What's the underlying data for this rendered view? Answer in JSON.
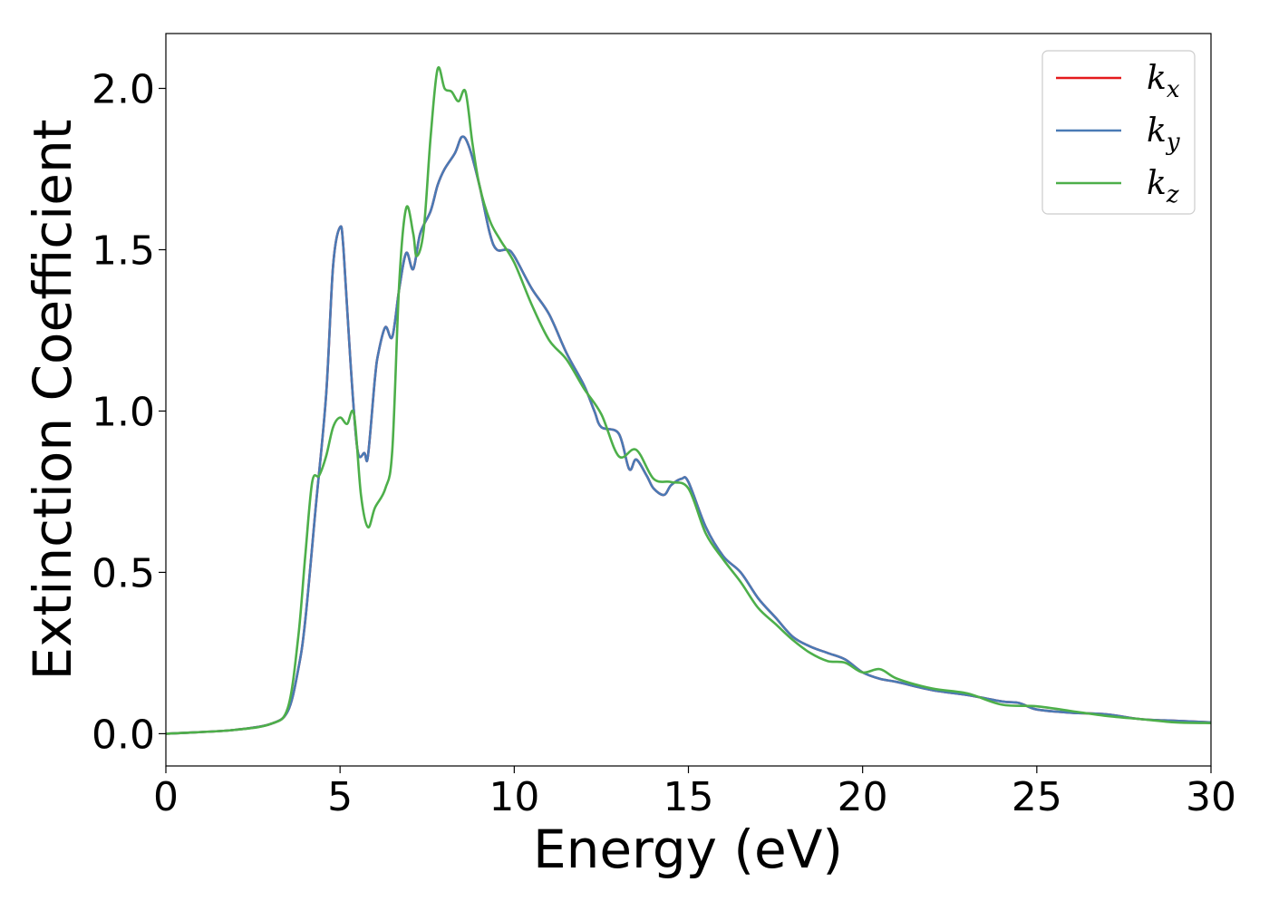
{
  "chart_data": {
    "type": "line",
    "title": "",
    "xlabel": "Energy (eV)",
    "ylabel": "Extinction Coefficient",
    "xlim": [
      0,
      30
    ],
    "ylim": [
      -0.1,
      2.17
    ],
    "xticks": [
      0,
      5,
      10,
      15,
      20,
      25,
      30
    ],
    "xtick_labels": [
      "0",
      "5",
      "10",
      "15",
      "20",
      "25",
      "30"
    ],
    "yticks": [
      0.0,
      0.5,
      1.0,
      1.5,
      2.0
    ],
    "ytick_labels": [
      "0.0",
      "0.5",
      "1.0",
      "1.5",
      "2.0"
    ],
    "grid": false,
    "legend_position": "top-right",
    "series": [
      {
        "name": "k_x",
        "label_base": "k",
        "label_sub": "x",
        "color": "#e41a1c",
        "x": [
          0,
          1,
          2,
          3,
          3.5,
          3.8,
          4.0,
          4.3,
          4.6,
          4.8,
          5.0,
          5.1,
          5.3,
          5.5,
          5.7,
          5.8,
          6.0,
          6.1,
          6.3,
          6.5,
          6.7,
          6.9,
          7.1,
          7.3,
          7.6,
          7.8,
          8.0,
          8.3,
          8.5,
          8.7,
          9.0,
          9.3,
          9.5,
          9.8,
          10.0,
          10.5,
          11.0,
          11.5,
          12.0,
          12.3,
          12.5,
          13.0,
          13.3,
          13.5,
          13.8,
          14.0,
          14.3,
          14.5,
          14.8,
          15.0,
          15.5,
          16.0,
          16.5,
          17.0,
          17.5,
          18.0,
          18.5,
          19.0,
          19.5,
          20.0,
          20.5,
          21.0,
          22.0,
          23.0,
          24.0,
          24.5,
          25.0,
          26.0,
          27.0,
          28.0,
          29.0,
          30.0
        ],
        "values": [
          0.0,
          0.005,
          0.012,
          0.03,
          0.07,
          0.2,
          0.35,
          0.7,
          1.05,
          1.45,
          1.57,
          1.5,
          1.15,
          0.88,
          0.87,
          0.86,
          1.1,
          1.18,
          1.26,
          1.23,
          1.38,
          1.49,
          1.44,
          1.55,
          1.62,
          1.7,
          1.75,
          1.8,
          1.85,
          1.82,
          1.7,
          1.55,
          1.5,
          1.5,
          1.48,
          1.38,
          1.3,
          1.18,
          1.08,
          1.0,
          0.95,
          0.93,
          0.82,
          0.85,
          0.8,
          0.76,
          0.74,
          0.77,
          0.79,
          0.78,
          0.64,
          0.55,
          0.5,
          0.42,
          0.36,
          0.3,
          0.27,
          0.25,
          0.23,
          0.19,
          0.17,
          0.16,
          0.135,
          0.12,
          0.1,
          0.095,
          0.075,
          0.065,
          0.06,
          0.045,
          0.04,
          0.035
        ]
      },
      {
        "name": "k_y",
        "label_base": "k",
        "label_sub": "y",
        "color": "#4a7ab5",
        "x": [
          0,
          1,
          2,
          3,
          3.5,
          3.8,
          4.0,
          4.3,
          4.6,
          4.8,
          5.0,
          5.1,
          5.3,
          5.5,
          5.7,
          5.8,
          6.0,
          6.1,
          6.3,
          6.5,
          6.7,
          6.9,
          7.1,
          7.3,
          7.6,
          7.8,
          8.0,
          8.3,
          8.5,
          8.7,
          9.0,
          9.3,
          9.5,
          9.8,
          10.0,
          10.5,
          11.0,
          11.5,
          12.0,
          12.3,
          12.5,
          13.0,
          13.3,
          13.5,
          13.8,
          14.0,
          14.3,
          14.5,
          14.8,
          15.0,
          15.5,
          16.0,
          16.5,
          17.0,
          17.5,
          18.0,
          18.5,
          19.0,
          19.5,
          20.0,
          20.5,
          21.0,
          22.0,
          23.0,
          24.0,
          24.5,
          25.0,
          26.0,
          27.0,
          28.0,
          29.0,
          30.0
        ],
        "values": [
          0.0,
          0.005,
          0.012,
          0.03,
          0.07,
          0.2,
          0.35,
          0.7,
          1.05,
          1.45,
          1.57,
          1.5,
          1.15,
          0.88,
          0.87,
          0.86,
          1.1,
          1.18,
          1.26,
          1.23,
          1.38,
          1.49,
          1.44,
          1.55,
          1.62,
          1.7,
          1.75,
          1.8,
          1.85,
          1.82,
          1.7,
          1.55,
          1.5,
          1.5,
          1.48,
          1.38,
          1.3,
          1.18,
          1.08,
          1.0,
          0.95,
          0.93,
          0.82,
          0.85,
          0.8,
          0.76,
          0.74,
          0.77,
          0.79,
          0.78,
          0.64,
          0.55,
          0.5,
          0.42,
          0.36,
          0.3,
          0.27,
          0.25,
          0.23,
          0.19,
          0.17,
          0.16,
          0.135,
          0.12,
          0.1,
          0.095,
          0.075,
          0.065,
          0.06,
          0.045,
          0.04,
          0.035
        ]
      },
      {
        "name": "k_z",
        "label_base": "k",
        "label_sub": "z",
        "color": "#4daf4a",
        "x": [
          0,
          1,
          2,
          3,
          3.5,
          3.8,
          4.0,
          4.2,
          4.4,
          4.6,
          4.8,
          5.0,
          5.2,
          5.4,
          5.6,
          5.8,
          6.0,
          6.3,
          6.5,
          6.7,
          6.9,
          7.1,
          7.2,
          7.4,
          7.6,
          7.8,
          8.0,
          8.2,
          8.4,
          8.6,
          8.8,
          9.0,
          9.3,
          9.6,
          10.0,
          10.5,
          11.0,
          11.5,
          12.0,
          12.5,
          13.0,
          13.5,
          14.0,
          14.5,
          15.0,
          15.5,
          16.0,
          16.5,
          17.0,
          17.5,
          18.0,
          18.5,
          19.0,
          19.5,
          20.0,
          20.5,
          21.0,
          22.0,
          23.0,
          24.0,
          25.0,
          26.0,
          27.0,
          28.0,
          29.0,
          30.0
        ],
        "values": [
          0.0,
          0.005,
          0.012,
          0.03,
          0.08,
          0.3,
          0.55,
          0.78,
          0.8,
          0.86,
          0.95,
          0.98,
          0.96,
          0.99,
          0.74,
          0.64,
          0.7,
          0.76,
          0.88,
          1.4,
          1.63,
          1.55,
          1.48,
          1.56,
          1.85,
          2.06,
          2.0,
          1.99,
          1.96,
          1.99,
          1.83,
          1.7,
          1.59,
          1.53,
          1.46,
          1.33,
          1.22,
          1.16,
          1.07,
          0.99,
          0.86,
          0.88,
          0.79,
          0.78,
          0.76,
          0.62,
          0.54,
          0.47,
          0.39,
          0.34,
          0.29,
          0.25,
          0.225,
          0.22,
          0.19,
          0.2,
          0.17,
          0.14,
          0.125,
          0.09,
          0.085,
          0.07,
          0.055,
          0.045,
          0.035,
          0.033
        ]
      }
    ]
  }
}
